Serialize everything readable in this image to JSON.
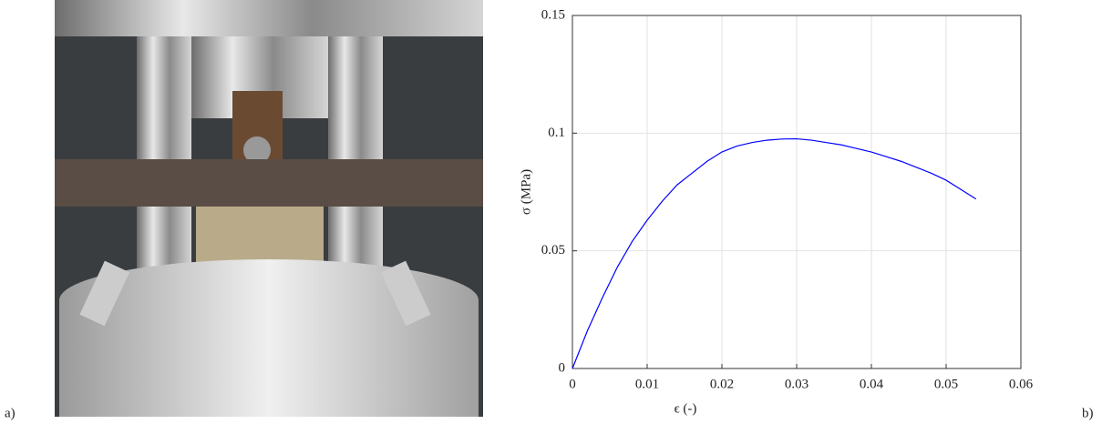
{
  "panel_labels": [
    "a)",
    "b)"
  ],
  "chart_data": {
    "type": "line",
    "xlabel": "ϵ (-)",
    "ylabel": "σ (MPa)",
    "x": [
      0,
      0.002,
      0.004,
      0.006,
      0.008,
      0.01,
      0.012,
      0.014,
      0.016,
      0.018,
      0.02,
      0.022,
      0.024,
      0.026,
      0.028,
      0.03,
      0.032,
      0.034,
      0.036,
      0.038,
      0.04,
      0.042,
      0.044,
      0.046,
      0.048,
      0.05,
      0.052,
      0.054
    ],
    "values": [
      0,
      0.016,
      0.03,
      0.043,
      0.054,
      0.063,
      0.071,
      0.078,
      0.083,
      0.088,
      0.092,
      0.0945,
      0.096,
      0.097,
      0.0975,
      0.0976,
      0.097,
      0.096,
      0.095,
      0.0935,
      0.092,
      0.09,
      0.088,
      0.0855,
      0.083,
      0.08,
      0.076,
      0.072
    ],
    "color": "#0000ff",
    "xlim": [
      0,
      0.06
    ],
    "xticks": [
      0,
      0.01,
      0.02,
      0.03,
      0.04,
      0.05,
      0.06
    ],
    "ylim": [
      0,
      0.15
    ],
    "yticks": [
      0,
      0.05,
      0.1,
      0.15
    ],
    "grid": true
  }
}
